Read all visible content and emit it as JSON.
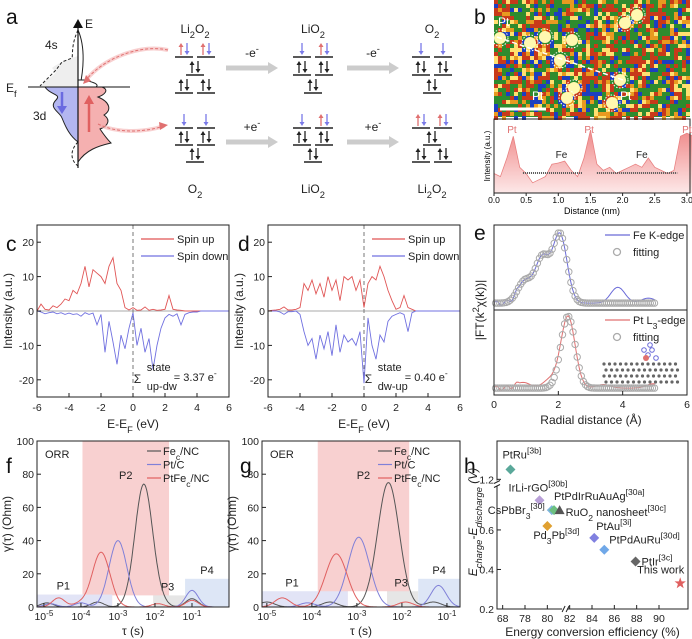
{
  "panel_labels": {
    "a": "a",
    "b": "b",
    "c": "c",
    "d": "d",
    "e": "e",
    "f": "f",
    "g": "g",
    "h": "h"
  },
  "panel_a": {
    "energy_axis_label": "E",
    "fermi_label": "E_{f}",
    "orbital_4s": "4s",
    "orbital_3d": "3d",
    "colors": {
      "spin_up": "#e07070",
      "spin_down": "#7a7ae8",
      "step_arrow": "#cccccc"
    },
    "top_row": {
      "steps": [
        "-e^{-}",
        "-e^{-}"
      ],
      "species": [
        {
          "label": "Li_{2}O_{2}",
          "rows": [
            [
              "UD",
              "UD"
            ],
            [
              "ud"
            ],
            [
              "ud",
              "ud"
            ]
          ]
        },
        {
          "label": "LiO_{2}",
          "rows": [
            [
              "D",
              "UD"
            ],
            [
              "ud",
              "ud"
            ],
            [
              "ud"
            ]
          ]
        },
        {
          "label": "O_{2}",
          "rows": [
            [
              "D",
              "D"
            ],
            [
              "ud",
              "ud"
            ],
            [
              "ud"
            ]
          ]
        }
      ]
    },
    "bottom_row": {
      "steps": [
        "+e^{-}",
        "+e^{-}"
      ],
      "species": [
        {
          "label": "O_{2}",
          "rows": [
            [
              "D",
              "D"
            ],
            [
              "ud",
              "ud"
            ],
            [
              "ud"
            ]
          ]
        },
        {
          "label": "LiO_{2}",
          "rows": [
            [
              "D",
              "UD"
            ],
            [
              "ud",
              "ud"
            ],
            [
              "ud"
            ]
          ]
        },
        {
          "label": "Li_{2}O_{2}",
          "rows": [
            [
              "UD",
              "UD"
            ],
            [
              "ud"
            ],
            [
              "ud",
              "ud"
            ]
          ]
        }
      ]
    }
  },
  "panel_b": {
    "image_labels": [
      "Pt",
      "Pt",
      "Pt"
    ],
    "profile": {
      "xlabel": "Distance (nm)",
      "ylabel": "Intensity (a.u.)",
      "xticks": [
        "0.0",
        "0.5",
        "1.0",
        "1.5",
        "2.0",
        "2.5",
        "3.0"
      ],
      "peak_labels": [
        {
          "text": "Pt",
          "x": 0.28
        },
        {
          "text": "Fe",
          "x": 1.05
        },
        {
          "text": "Pt",
          "x": 1.48
        },
        {
          "text": "Fe",
          "x": 2.3
        },
        {
          "text": "Pt",
          "x": 3.0
        }
      ],
      "distance_nm": [
        0,
        0.1,
        0.2,
        0.3,
        0.4,
        0.5,
        0.6,
        0.7,
        0.8,
        0.9,
        1.0,
        1.1,
        1.2,
        1.3,
        1.4,
        1.5,
        1.6,
        1.7,
        1.8,
        1.9,
        2.0,
        2.1,
        2.2,
        2.3,
        2.4,
        2.5,
        2.6,
        2.7,
        2.8,
        2.9,
        3.0,
        3.1
      ],
      "intensity": [
        0.25,
        0.2,
        0.5,
        0.85,
        0.35,
        0.25,
        0.1,
        0.15,
        0.2,
        0.4,
        0.42,
        0.45,
        0.3,
        0.2,
        0.5,
        0.95,
        0.4,
        0.3,
        0.35,
        0.25,
        0.3,
        0.35,
        0.4,
        0.35,
        0.5,
        0.35,
        0.3,
        0.25,
        0.3,
        0.85,
        0.9,
        0.85
      ],
      "color": "#e88080"
    }
  },
  "chart_data": [
    {
      "panel": "c",
      "type": "line",
      "xlabel": "E-E_{F} (eV)",
      "ylabel": "Intensity (a.u.)",
      "xlim": [
        -6,
        6
      ],
      "ylim": [
        -25,
        25
      ],
      "xticks": [
        -6,
        -4,
        -2,
        0,
        2,
        4,
        6
      ],
      "yticks": [
        -20,
        -10,
        0,
        10,
        20
      ],
      "x_start": -6,
      "x_step": 0.25,
      "series": [
        {
          "name": "Spin up",
          "color": "#e05555",
          "values": [
            0,
            2,
            0.5,
            0.3,
            1.5,
            1,
            2,
            3.5,
            3,
            6,
            5,
            8,
            13,
            7,
            12,
            11,
            10,
            8,
            13,
            15.5,
            8,
            6,
            1,
            0.3,
            1,
            0.2,
            0.3,
            1.2,
            0.2,
            0.5,
            0.2,
            0.3,
            0.5,
            4.5,
            0.5,
            0.3,
            0.2,
            0,
            0,
            0,
            0,
            0,
            0,
            0,
            0,
            0,
            0,
            0,
            0
          ]
        },
        {
          "name": "Spin down",
          "color": "#7070e0",
          "values": [
            0,
            -0.3,
            -0.8,
            -0.5,
            -0.3,
            -0.8,
            -0.5,
            -1,
            -0.6,
            -1,
            -0.8,
            -1.5,
            -0.5,
            -1,
            -0.6,
            -4,
            -1,
            -12,
            -3,
            -9,
            -15.5,
            -7,
            -11,
            -5,
            -0.5,
            -10,
            -5,
            -12,
            -8,
            -17,
            -10,
            -5,
            -2,
            -1,
            -1.5,
            -0.8,
            -4,
            -1,
            -0.5,
            -0.3,
            -0.3,
            0,
            0,
            0,
            0,
            0,
            0,
            0,
            0
          ]
        }
      ],
      "annotation": {
        "symbol": "Σ",
        "sup": "state",
        "sub": "up-dw",
        "value": "= 3.37 e^{-}",
        "color": "#e06868"
      },
      "legend": "top-right"
    },
    {
      "panel": "d",
      "type": "line",
      "xlabel": "E-E_{F} (eV)",
      "ylabel": "Intensity (a.u.)",
      "xlim": [
        -6,
        6
      ],
      "ylim": [
        -25,
        25
      ],
      "xticks": [
        -6,
        -4,
        -2,
        0,
        2,
        4,
        6
      ],
      "yticks": [
        -20,
        -10,
        0,
        10,
        20
      ],
      "x_start": -6,
      "x_step": 0.25,
      "series": [
        {
          "name": "Spin up",
          "color": "#e05555",
          "values": [
            0,
            0.2,
            0.3,
            0.5,
            1.2,
            0.3,
            0.3,
            0.5,
            1,
            8,
            6,
            9,
            5,
            8,
            4,
            10,
            6,
            9,
            3,
            10,
            9,
            10,
            6,
            9,
            1,
            8,
            10,
            9,
            13,
            10,
            6,
            3,
            0.5,
            1,
            4.5,
            1,
            0.5,
            0,
            0,
            0,
            0,
            0,
            0,
            0,
            0,
            0,
            0,
            0,
            0
          ]
        },
        {
          "name": "Spin down",
          "color": "#7070e0",
          "values": [
            0,
            0,
            0,
            -0.3,
            -1,
            -0.2,
            -0.2,
            0,
            -1,
            -6,
            -10,
            -8,
            -14,
            -7,
            -11,
            -6,
            -13,
            -4,
            -12,
            -7,
            -9,
            -8,
            -10,
            -6,
            -21,
            -2,
            -10,
            -14,
            -7,
            -9,
            -3,
            -1.5,
            -1,
            -0.5,
            -1,
            -6,
            -0.5,
            0,
            0,
            0,
            0,
            0,
            0,
            0,
            0,
            0,
            0,
            0,
            0
          ]
        }
      ],
      "annotation": {
        "symbol": "Σ",
        "sup": "state",
        "sub": "dw-up",
        "value": "= 0.40 e^{-}",
        "color": "#7070e0"
      },
      "legend": "top-right"
    },
    {
      "panel": "e",
      "type": "line",
      "xlabel": "Radial distance (Å)",
      "ylabel": "|FT(k^{2}χ(k))|",
      "xlim": [
        0,
        6
      ],
      "xticks": [
        0,
        2,
        4,
        6
      ],
      "subplots": [
        {
          "name": "Fe K-edge",
          "fit_name": "fitting",
          "color": "#6a6ad8",
          "fit_peaks": [
            {
              "r": 0.95,
              "amp": 0.3
            },
            {
              "r": 1.5,
              "amp": 0.62
            },
            {
              "r": 2.05,
              "amp": 0.95
            }
          ],
          "extra_peaks": [
            {
              "r": 3.85,
              "amp": 0.22
            },
            {
              "r": 4.8,
              "amp": 0.07
            }
          ]
        },
        {
          "name": "Pt L_{3}-edge",
          "fit_name": "fitting",
          "color": "#e07070",
          "fit_peaks": [
            {
              "r": 2.3,
              "amp": 1.0
            }
          ],
          "extra_peaks": [
            {
              "r": 0.9,
              "amp": 0.08
            },
            {
              "r": 1.75,
              "amp": 0.12
            },
            {
              "r": 3.4,
              "amp": 0.05
            },
            {
              "r": 4.95,
              "amp": 0.06
            }
          ]
        }
      ],
      "legend": "top-right"
    },
    {
      "panel": "f",
      "type": "line",
      "x_scale": "log",
      "title": "ORR",
      "xlabel": "τ (s)",
      "ylabel": "γ(τ) (Ohm)",
      "xlim": [
        6.5e-06,
        1
      ],
      "ylim": [
        0,
        100
      ],
      "xticks": [
        "10^{-5}",
        "10^{-4}",
        "10^{-3}",
        "10^{-2}",
        "10^{-1}"
      ],
      "yticks": [
        0,
        20,
        40,
        60,
        80,
        100
      ],
      "regions": [
        {
          "label": "P2",
          "tau": [
            0.00011,
            0.024
          ],
          "gamma_max": 100,
          "color": "#f8d0d0",
          "label_color": "#e07070"
        },
        {
          "label": "P1",
          "tau": [
            6.5e-06,
            0.0007
          ],
          "gamma_max": 7.5,
          "color": "#e2e4f6",
          "label_color": "#7070e0"
        },
        {
          "label": "",
          "tau": [
            0.0007,
            0.009
          ],
          "gamma_max": 7,
          "color": "#ffffff",
          "label_color": "#ffffff"
        },
        {
          "label": "P3",
          "tau": [
            0.009,
            0.065
          ],
          "gamma_max": 7,
          "color": "#e6e6e6",
          "label_color": "#555555"
        },
        {
          "label": "P4",
          "tau": [
            0.065,
            1
          ],
          "gamma_max": 17,
          "color": "#dde6f6",
          "label_color": "#7090e0"
        }
      ],
      "series": [
        {
          "name": "Fe_{c}/NC",
          "color": "#555555",
          "peaks": [
            {
              "tau": 1.2e-05,
              "gamma": 2.5
            },
            {
              "tau": 0.00028,
              "gamma": 3
            },
            {
              "tau": 0.005,
              "gamma": 74
            },
            {
              "tau": 0.015,
              "gamma": 2
            },
            {
              "tau": 0.1,
              "gamma": 5
            }
          ]
        },
        {
          "name": "Pt/C",
          "color": "#8080d8",
          "peaks": [
            {
              "tau": 1.5e-05,
              "gamma": 2
            },
            {
              "tau": 0.0001,
              "gamma": 2.5
            },
            {
              "tau": 0.001,
              "gamma": 40
            },
            {
              "tau": 0.1,
              "gamma": 10
            }
          ]
        },
        {
          "name": "PtFe_{c}/NC",
          "color": "#e06060",
          "peaks": [
            {
              "tau": 2.5e-05,
              "gamma": 5.5
            },
            {
              "tau": 9e-05,
              "gamma": 2
            },
            {
              "tau": 0.00035,
              "gamma": 33
            },
            {
              "tau": 0.012,
              "gamma": 2
            },
            {
              "tau": 0.1,
              "gamma": 4
            }
          ]
        }
      ],
      "legend": "top-right"
    },
    {
      "panel": "g",
      "type": "line",
      "x_scale": "log",
      "title": "OER",
      "xlabel": "τ (s)",
      "ylabel": "γ(τ) (Ohm)",
      "xlim": [
        7.8e-06,
        0.195
      ],
      "ylim": [
        0,
        100
      ],
      "xticks": [
        "10^{-5}",
        "10^{-4}",
        "10^{-3}",
        "10^{-2}",
        "10^{-1}"
      ],
      "yticks": [
        0,
        20,
        40,
        60,
        80,
        100
      ],
      "regions": [
        {
          "label": "P2",
          "tau": [
            0.000135,
            0.0145
          ],
          "gamma_max": 100,
          "color": "#f8d0d0",
          "label_color": "#e07070"
        },
        {
          "label": "P1",
          "tau": [
            7.8e-06,
            0.00063
          ],
          "gamma_max": 9.5,
          "color": "#e2e4f6",
          "label_color": "#7070e0"
        },
        {
          "label": "",
          "tau": [
            0.00063,
            0.0047
          ],
          "gamma_max": 9.5,
          "color": "#ffffff",
          "label_color": "#ffffff"
        },
        {
          "label": "P3",
          "tau": [
            0.0047,
            0.023
          ],
          "gamma_max": 9.5,
          "color": "#e6e6e6",
          "label_color": "#555555"
        },
        {
          "label": "P4",
          "tau": [
            0.023,
            0.195
          ],
          "gamma_max": 17,
          "color": "#dde6f6",
          "label_color": "#7090e0"
        }
      ],
      "series": [
        {
          "name": "Fe_{c}/NC",
          "color": "#555555",
          "peaks": [
            {
              "tau": 1e-05,
              "gamma": 3
            },
            {
              "tau": 0.00025,
              "gamma": 3
            },
            {
              "tau": 0.005,
              "gamma": 75
            },
            {
              "tau": 0.05,
              "gamma": 3
            }
          ]
        },
        {
          "name": "Pt/C",
          "color": "#8080d8",
          "peaks": [
            {
              "tau": 8e-05,
              "gamma": 2.5
            },
            {
              "tau": 0.0011,
              "gamma": 42
            },
            {
              "tau": 0.065,
              "gamma": 13
            }
          ]
        },
        {
          "name": "PtFe_{c}/NC",
          "color": "#e06060",
          "peaks": [
            {
              "tau": 2.2e-05,
              "gamma": 5.5
            },
            {
              "tau": 0.00035,
              "gamma": 32
            },
            {
              "tau": 0.012,
              "gamma": 3
            }
          ]
        }
      ],
      "legend": "top-right"
    },
    {
      "panel": "h",
      "type": "scatter",
      "xlabel": "Energy conversion efficiency (%)",
      "ylabel": "E_{charge}-E_{discharge} (V)",
      "xticks": [
        68,
        78,
        80,
        82,
        84,
        86,
        88,
        90
      ],
      "yticks": [
        0.2,
        0.4,
        0.6,
        1.2
      ],
      "x_axis_break": [
        70,
        77
      ],
      "y_axis_break": [
        0.8,
        1.15
      ],
      "points": [
        {
          "label": "PtRu^{[3b]}",
          "x": 68.7,
          "y": 1.25,
          "marker": "diamond",
          "color": "#5aa89a"
        },
        {
          "label": "IrLi-rGO^{[30b]}",
          "x": 79.3,
          "y": 0.75,
          "marker": "diamond",
          "color": "#b9a0d8"
        },
        {
          "label": "CsPbBr_{3}^{[30]}",
          "x": 80.4,
          "y": 0.7,
          "marker": "diamond",
          "color": "#7fb4e0"
        },
        {
          "label": "PtPdIrRuAuAg^{[30a]}",
          "x": 80.6,
          "y": 0.7,
          "marker": "diamond",
          "color": "#6cc080"
        },
        {
          "label": "RuO_{2} nanosheet^{[30c]}",
          "x": 81.1,
          "y": 0.7,
          "marker": "triangle",
          "color": "#555555"
        },
        {
          "label": "Pd_{3}Pb^{[3d]}",
          "x": 80.0,
          "y": 0.62,
          "marker": "diamond",
          "color": "#e0a030"
        },
        {
          "label": "PtAu^{[3i]}",
          "x": 84.2,
          "y": 0.56,
          "marker": "diamond",
          "color": "#8080e0"
        },
        {
          "label": "PtPdAuRu^{[30d]}",
          "x": 85.1,
          "y": 0.5,
          "marker": "diamond",
          "color": "#70a8e8"
        },
        {
          "label": "PtIr^{[3c]}",
          "x": 87.9,
          "y": 0.44,
          "marker": "diamond",
          "color": "#666666"
        },
        {
          "label": "This work",
          "x": 91.9,
          "y": 0.33,
          "marker": "star",
          "color": "#e06060"
        }
      ]
    }
  ]
}
